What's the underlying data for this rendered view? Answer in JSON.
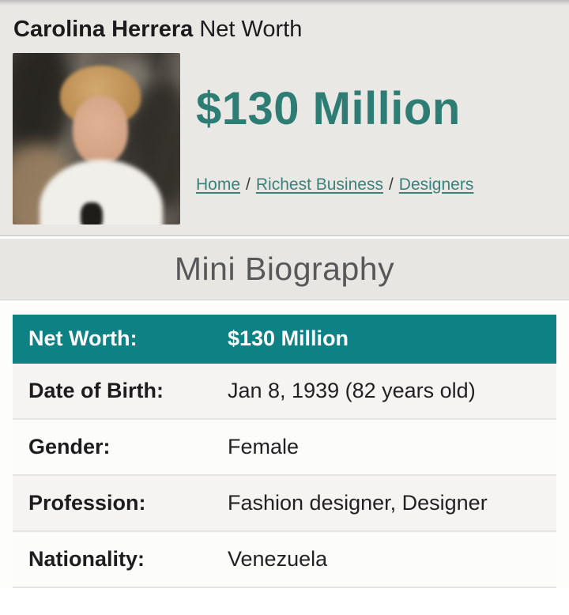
{
  "colors": {
    "accent_teal_text": "#2e7d74",
    "table_header_teal": "#0e8184",
    "breadcrumb_link_teal": "#3a8279",
    "header_background_gray": "#eae8e5",
    "mini_bio_bar_gray": "#e8e6e3"
  },
  "header": {
    "title_bold": "Carolina Herrera",
    "title_rest": " Net Worth",
    "net_worth_amount": "$130 Million"
  },
  "breadcrumb": {
    "separator": "/",
    "items": [
      {
        "label": "Home"
      },
      {
        "label": "Richest Business"
      },
      {
        "label": "Designers"
      }
    ]
  },
  "section": {
    "mini_biography_title": "Mini Biography"
  },
  "bio_table": {
    "header": {
      "label": "Net Worth:",
      "value": "$130 Million"
    },
    "rows": [
      {
        "label": "Date of Birth:",
        "value": "Jan 8, 1939 (82 years old)"
      },
      {
        "label": "Gender:",
        "value": "Female"
      },
      {
        "label": "Profession:",
        "value": "Fashion designer, Designer"
      },
      {
        "label": "Nationality:",
        "value": "Venezuela"
      }
    ]
  }
}
